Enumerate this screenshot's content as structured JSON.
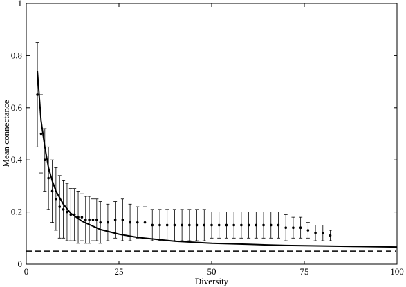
{
  "chart_data": {
    "type": "scatter",
    "title": "",
    "xlabel": "Diversity",
    "ylabel": "Mean connectance",
    "xlim": [
      0,
      100
    ],
    "ylim": [
      0,
      1
    ],
    "xticks": [
      0,
      25,
      50,
      75,
      100
    ],
    "xtick_labels": [
      "0",
      "25",
      "50",
      "75",
      "100"
    ],
    "yticks": [
      0,
      0.2,
      0.4,
      0.6,
      0.8,
      1
    ],
    "ytick_labels": [
      "0",
      "0.2",
      "0.4",
      "0.6",
      "0.8",
      "1"
    ],
    "grid": false,
    "legend": "none",
    "series": [
      {
        "kind": "points-with-error-bars",
        "x": [
          3,
          4,
          5,
          6,
          7,
          8,
          9,
          10,
          11,
          12,
          13,
          14,
          15,
          16,
          17,
          18,
          19,
          20,
          22,
          24,
          26,
          28,
          30,
          32,
          34,
          36,
          38,
          40,
          42,
          44,
          46,
          48,
          50,
          52,
          54,
          56,
          58,
          60,
          62,
          64,
          66,
          68,
          70,
          72,
          74,
          76,
          78,
          80,
          82
        ],
        "y": [
          0.65,
          0.5,
          0.4,
          0.33,
          0.28,
          0.25,
          0.22,
          0.21,
          0.2,
          0.19,
          0.19,
          0.18,
          0.18,
          0.17,
          0.17,
          0.17,
          0.17,
          0.16,
          0.16,
          0.17,
          0.17,
          0.16,
          0.16,
          0.16,
          0.15,
          0.15,
          0.15,
          0.15,
          0.15,
          0.15,
          0.15,
          0.15,
          0.15,
          0.15,
          0.15,
          0.15,
          0.15,
          0.15,
          0.15,
          0.15,
          0.15,
          0.15,
          0.14,
          0.14,
          0.14,
          0.13,
          0.12,
          0.12,
          0.11
        ],
        "err": [
          0.2,
          0.15,
          0.12,
          0.12,
          0.12,
          0.12,
          0.12,
          0.11,
          0.11,
          0.1,
          0.1,
          0.1,
          0.09,
          0.09,
          0.09,
          0.08,
          0.08,
          0.08,
          0.07,
          0.07,
          0.08,
          0.07,
          0.06,
          0.06,
          0.06,
          0.06,
          0.06,
          0.06,
          0.06,
          0.06,
          0.06,
          0.06,
          0.05,
          0.05,
          0.05,
          0.05,
          0.05,
          0.05,
          0.05,
          0.05,
          0.05,
          0.05,
          0.05,
          0.04,
          0.04,
          0.03,
          0.03,
          0.03,
          0.02
        ]
      },
      {
        "kind": "fitted-curve",
        "style": "solid",
        "x": [
          3,
          4,
          5,
          6,
          7,
          8,
          10,
          12,
          15,
          20,
          25,
          30,
          40,
          50,
          60,
          70,
          80,
          90,
          100
        ],
        "y": [
          0.74,
          0.55,
          0.45,
          0.37,
          0.32,
          0.28,
          0.23,
          0.195,
          0.165,
          0.133,
          0.115,
          0.103,
          0.088,
          0.08,
          0.076,
          0.072,
          0.07,
          0.068,
          0.066
        ]
      },
      {
        "kind": "reference-line",
        "style": "dashed",
        "x": [
          0,
          100
        ],
        "y": [
          0.05,
          0.05
        ]
      }
    ]
  }
}
